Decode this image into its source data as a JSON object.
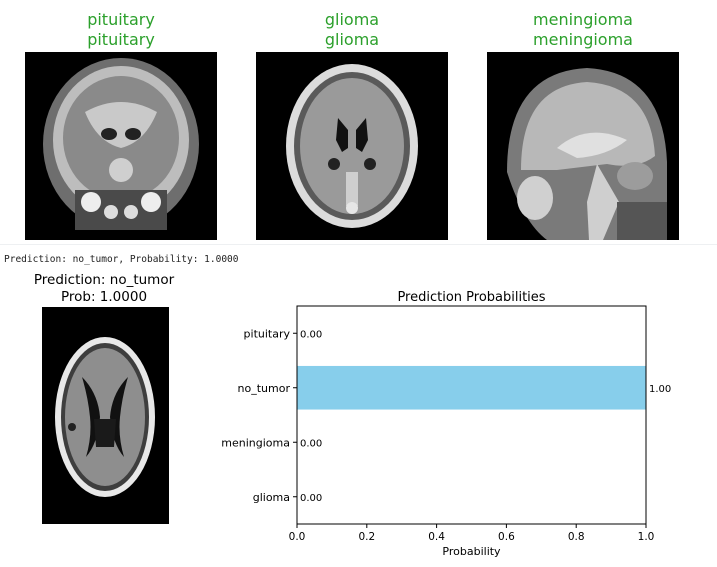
{
  "gallery": [
    {
      "true_label": "pituitary",
      "pred_label": "pituitary"
    },
    {
      "true_label": "glioma",
      "pred_label": "glioma"
    },
    {
      "true_label": "meningioma",
      "pred_label": "meningioma"
    }
  ],
  "colors": {
    "correct_label": "#2ca02c",
    "bar": "#87ceeb"
  },
  "console_output": "Prediction: no_tumor, Probability: 1.0000",
  "prediction_panel": {
    "title_line1": "Prediction: no_tumor",
    "title_line2": "Prob: 1.0000"
  },
  "chart_data": {
    "type": "bar",
    "orientation": "horizontal",
    "title": "Prediction Probabilities",
    "xlabel": "Probability",
    "ylabel": "",
    "categories": [
      "glioma",
      "meningioma",
      "no_tumor",
      "pituitary"
    ],
    "values": [
      0.0,
      0.0,
      1.0,
      0.0
    ],
    "value_labels": [
      "0.00",
      "0.00",
      "1.00",
      "0.00"
    ],
    "xlim": [
      0.0,
      1.0
    ],
    "xticks": [
      "0.0",
      "0.2",
      "0.4",
      "0.6",
      "0.8",
      "1.0"
    ],
    "grid": false
  }
}
